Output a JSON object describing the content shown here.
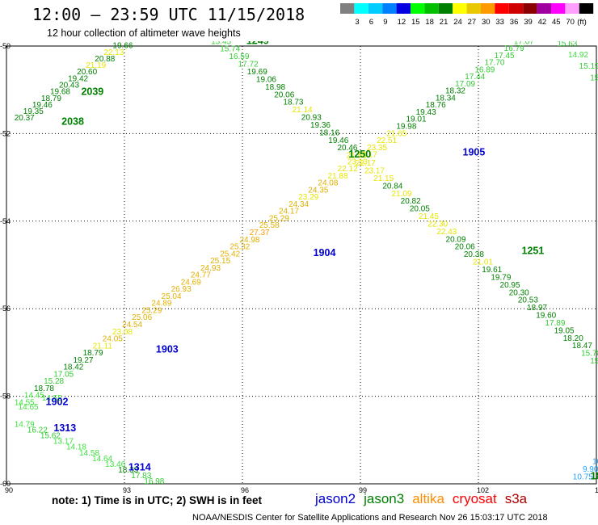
{
  "header": {
    "title": "12:00 — 23:59 UTC 11/15/2018",
    "subtitle": "12 hour collection of altimeter wave heights"
  },
  "color_scale": {
    "unit": "(ft)",
    "bins": [
      {
        "label": "",
        "color": "#808080"
      },
      {
        "label": "3",
        "color": "#00ffff"
      },
      {
        "label": "6",
        "color": "#00ccff"
      },
      {
        "label": "9",
        "color": "#0080ff"
      },
      {
        "label": "12",
        "color": "#0000e0"
      },
      {
        "label": "15",
        "color": "#00ff00"
      },
      {
        "label": "18",
        "color": "#00c000"
      },
      {
        "label": "21",
        "color": "#008000"
      },
      {
        "label": "24",
        "color": "#ffff00"
      },
      {
        "label": "27",
        "color": "#e8c800"
      },
      {
        "label": "30",
        "color": "#ff9900"
      },
      {
        "label": "33",
        "color": "#ff0000"
      },
      {
        "label": "36",
        "color": "#d00000"
      },
      {
        "label": "39",
        "color": "#8b0000"
      },
      {
        "label": "42",
        "color": "#a000a0"
      },
      {
        "label": "45",
        "color": "#ff00ff"
      },
      {
        "label": "70",
        "color": "#ffa0ff"
      },
      {
        "label": "",
        "color": "#000000"
      }
    ]
  },
  "map": {
    "lon_range": [
      90,
      105
    ],
    "lat_range": [
      -60,
      -50
    ],
    "x_ticks": [
      "90",
      "93",
      "96",
      "99",
      "102",
      "105"
    ],
    "y_ticks": [
      "-50",
      "-52",
      "-54",
      "-56",
      "-58",
      "-60"
    ]
  },
  "tracks": [
    {
      "name": "pass-1249",
      "start": [
        95.2,
        -49.95
      ],
      "end": [
        105.3,
        -57.6
      ],
      "values": [
        "15.45",
        "15.74",
        "16.59",
        "17.72",
        "19.69",
        "19.06",
        "18.98",
        "20.06",
        "18.73",
        "21.14",
        "20.93",
        "19.36",
        "18.16",
        "19.46",
        "20.46",
        "21.86",
        "22.17",
        "23.17",
        "21.15",
        "20.84",
        "21.09",
        "20.82",
        "20.05",
        "21.45",
        "22.30",
        "22.43",
        "20.09",
        "20.06",
        "20.38",
        "21.01",
        "19.61",
        "19.79",
        "20.95",
        "20.30",
        "20.53",
        "18.97",
        "19.60",
        "17.89",
        "19.05",
        "18.20",
        "18.47",
        "15.78",
        "15.37",
        "15.30",
        "15"
      ]
    },
    {
      "name": "pass-1904",
      "start": [
        90.2,
        -58.2
      ],
      "end": [
        102.9,
        -49.95
      ],
      "values": [
        "14.55",
        "14.45",
        "18.78",
        "15.28",
        "17.05",
        "18.42",
        "19.27",
        "18.79",
        "21.11",
        "24.05",
        "23.08",
        "24.54",
        "25.06",
        "25.29",
        "24.89",
        "25.04",
        "26.93",
        "24.69",
        "24.77",
        "24.93",
        "25.15",
        "25.42",
        "25.32",
        "24.98",
        "27.37",
        "25.58",
        "25.29",
        "24.17",
        "24.34",
        "23.29",
        "24.35",
        "24.08",
        "21.88",
        "22.12",
        "23.13",
        "22.17",
        "23.35",
        "22.51",
        "21.65",
        "19.98",
        "19.01",
        "19.43",
        "18.76",
        "18.34",
        "18.32",
        "17.09",
        "17.44",
        "16.89",
        "17.70",
        "17.45",
        "16.79",
        "17.07"
      ]
    },
    {
      "name": "pass-2038",
      "start": [
        90.2,
        -51.7
      ],
      "end": [
        92.7,
        -50.05
      ],
      "values": [
        "20.37",
        "19.35",
        "19.46",
        "18.79",
        "19.68",
        "20.43",
        "19.42",
        "20.60",
        "21.19",
        "20.88",
        "22.13",
        "19.66"
      ]
    },
    {
      "name": "pass-1313",
      "start": [
        90.2,
        -58.7
      ],
      "end": [
        93.5,
        -60.0
      ],
      "values": [
        "14.79",
        "16.22",
        "15.62",
        "13.17",
        "14.18",
        "14.58",
        "14.64",
        "13.46",
        "18.33",
        "17.83",
        "16.98"
      ]
    },
    {
      "name": "pass-1902",
      "start": [
        90.3,
        -58.3
      ],
      "end": [
        90.9,
        -58.1
      ],
      "values": [
        "14.65",
        "14.55"
      ]
    },
    {
      "name": "pass-1905-east",
      "start": [
        104.0,
        -50.0
      ],
      "end": [
        105.4,
        -51.3
      ],
      "values": [
        "15.63",
        "14.92",
        "15.19",
        "15.23",
        "14.8",
        "14"
      ]
    },
    {
      "name": "pass-se",
      "start": [
        104.4,
        -59.9
      ],
      "end": [
        105.4,
        -59.2
      ],
      "values": [
        "10.75",
        "9.90",
        "10.83",
        "12",
        "18"
      ]
    }
  ],
  "pass_labels": [
    {
      "text": "1249",
      "lon": 96.1,
      "lat": -49.95,
      "color": "#008000"
    },
    {
      "text": "2039",
      "lon": 91.9,
      "lat": -51.12,
      "color": "#008000"
    },
    {
      "text": "2038",
      "lon": 91.4,
      "lat": -51.8,
      "color": "#008000"
    },
    {
      "text": "1250",
      "lon": 98.7,
      "lat": -52.55,
      "color": "#008000"
    },
    {
      "text": "1905",
      "lon": 101.6,
      "lat": -52.5,
      "color": "#0000cc"
    },
    {
      "text": "1251",
      "lon": 103.1,
      "lat": -54.75,
      "color": "#008000"
    },
    {
      "text": "1904",
      "lon": 97.8,
      "lat": -54.8,
      "color": "#0000cc"
    },
    {
      "text": "1903",
      "lon": 93.8,
      "lat": -57.0,
      "color": "#0000cc"
    },
    {
      "text": "1902",
      "lon": 91.0,
      "lat": -58.2,
      "color": "#0000cc"
    },
    {
      "text": "1313",
      "lon": 91.2,
      "lat": -58.8,
      "color": "#0000cc"
    },
    {
      "text": "1314",
      "lon": 93.1,
      "lat": -59.7,
      "color": "#0000cc"
    },
    {
      "text": "18",
      "lon": 104.85,
      "lat": -59.9,
      "color": "#008000"
    }
  ],
  "legend": [
    {
      "label": "jason2",
      "color": "#0000cc"
    },
    {
      "label": "jason3",
      "color": "#008000"
    },
    {
      "label": "altika",
      "color": "#ff8c00"
    },
    {
      "label": "cryosat",
      "color": "#ff0000"
    },
    {
      "label": "s3a",
      "color": "#b00000"
    }
  ],
  "note": "note:  1) Time is in UTC;  2) SWH is in feet",
  "footer": "NOAA/NESDIS Center for Satellite Applications and Research   Nov 26 15:03:17 UTC 2018"
}
